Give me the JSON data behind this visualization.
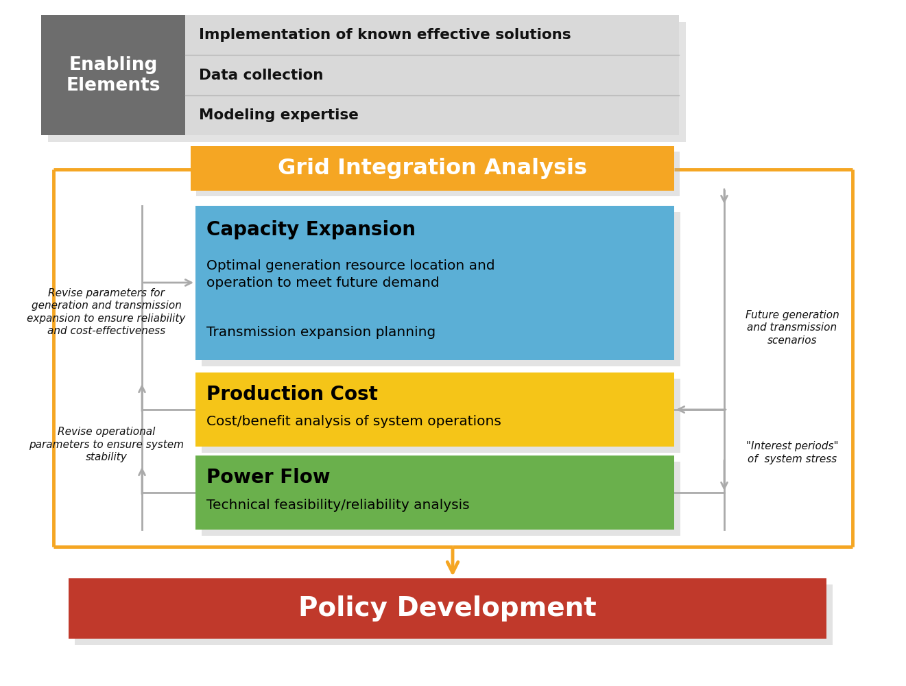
{
  "bg_color": "#ffffff",
  "enabling_box": {
    "label_bg": "#6d6d6d",
    "label_text": "Enabling\nElements",
    "label_color": "#ffffff",
    "content_bg": "#d9d9d9",
    "items": [
      "Implementation of known effective solutions",
      "Data collection",
      "Modeling expertise"
    ]
  },
  "grid_integration": {
    "text": "Grid Integration Analysis",
    "bg": "#f5a623",
    "text_color": "#ffffff"
  },
  "capacity_expansion": {
    "title": "Capacity Expansion",
    "items": [
      "Optimal generation resource location and\noperation to meet future demand",
      "Transmission expansion planning"
    ],
    "bg": "#5bafd6",
    "text_color": "#000000"
  },
  "production_cost": {
    "title": "Production Cost",
    "items": [
      "Cost/benefit analysis of system operations"
    ],
    "bg": "#f5c518",
    "text_color": "#000000"
  },
  "power_flow": {
    "title": "Power Flow",
    "items": [
      "Technical feasibility/reliability analysis"
    ],
    "bg": "#6ab04c",
    "text_color": "#000000"
  },
  "policy_development": {
    "text": "Policy Development",
    "bg": "#c0392b",
    "text_color": "#ffffff"
  },
  "left_annotations": [
    "Revise parameters for\ngeneration and transmission\nexpansion to ensure reliability\nand cost-effectiveness",
    "Revise operational\nparameters to ensure system\nstability"
  ],
  "right_annotations": [
    "Future generation\nand transmission\nscenarios",
    "\"Interest periods\"\nof  system stress"
  ],
  "orange_line_color": "#f5a623",
  "shadow_color": "#b0b0b0",
  "arrow_color": "#aaaaaa"
}
